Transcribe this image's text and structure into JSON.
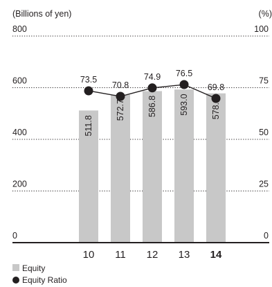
{
  "chart_data": {
    "type": "bar",
    "categories": [
      "10",
      "11",
      "12",
      "13",
      "14"
    ],
    "highlight_category": "14",
    "series": [
      {
        "name": "Equity",
        "type": "bar",
        "axis": "left",
        "values": [
          511.8,
          572.7,
          586.8,
          593.0,
          578.1
        ],
        "value_labels": [
          "511.8",
          "572.7",
          "586.8",
          "593.0",
          "578.1"
        ],
        "color": "#c8c8c8"
      },
      {
        "name": "Equity Ratio",
        "type": "line",
        "axis": "right",
        "values": [
          73.5,
          70.8,
          74.9,
          76.5,
          69.8
        ],
        "value_labels": [
          "73.5",
          "70.8",
          "74.9",
          "76.5",
          "69.8"
        ],
        "color": "#231f20"
      }
    ],
    "y_left": {
      "label": "(Billions of yen)",
      "ticks": [
        "800",
        "600",
        "400",
        "200",
        "0"
      ],
      "tick_values": [
        800,
        600,
        400,
        200,
        0
      ],
      "ylim": [
        0,
        800
      ]
    },
    "y_right": {
      "label": "(%)",
      "ticks": [
        "100",
        "75",
        "50",
        "25",
        "0"
      ],
      "tick_values": [
        100,
        75,
        50,
        25,
        0
      ],
      "ylim": [
        0,
        100
      ]
    },
    "grid": "dotted",
    "legend_position": "bottom-left",
    "legend": [
      {
        "label": "Equity",
        "marker": "square",
        "color": "#c8c8c8"
      },
      {
        "label": "Equity Ratio",
        "marker": "circle",
        "color": "#231f20"
      }
    ]
  }
}
